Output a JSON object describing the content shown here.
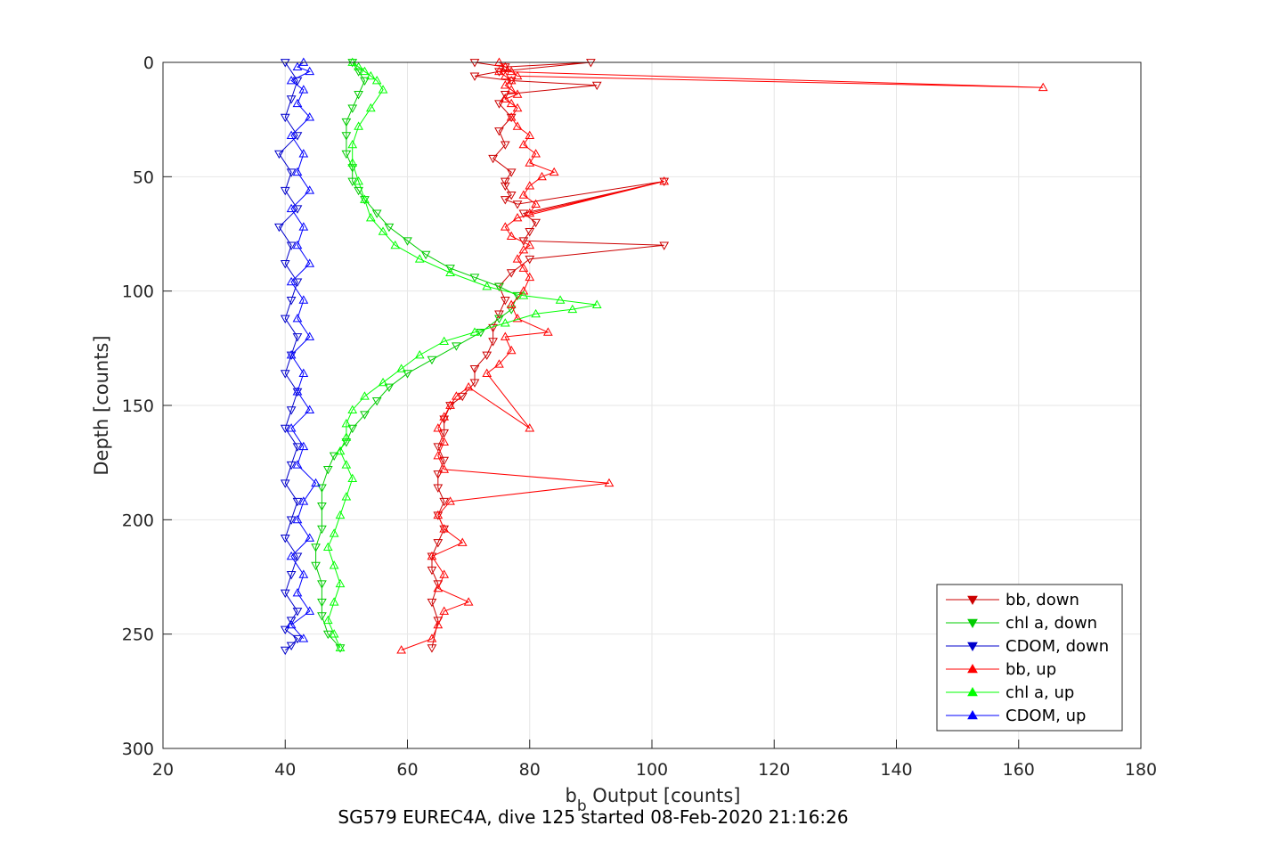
{
  "chart_data": {
    "type": "line",
    "title": "",
    "caption": "SG579 EUREC4A, dive 125 started 08-Feb-2020 21:16:26",
    "xlabel_main": "b",
    "xlabel_sub": "b",
    "xlabel_rest": " Output [counts]",
    "ylabel": "Depth [counts]",
    "xlim": [
      20,
      180
    ],
    "ylim": [
      0,
      300
    ],
    "y_reversed": true,
    "grid": true,
    "legend_position": "bottom-right",
    "xticks": [
      "20",
      "40",
      "60",
      "80",
      "100",
      "120",
      "140",
      "160",
      "180"
    ],
    "yticks": [
      "0",
      "50",
      "100",
      "150",
      "200",
      "250",
      "300"
    ],
    "series": [
      {
        "name": "bb, down",
        "color": "#cc0000",
        "marker": "triangle-down",
        "x": [
          71,
          76,
          90,
          75,
          71,
          77,
          91,
          76,
          75,
          77,
          75,
          76,
          74,
          77,
          76,
          76,
          77,
          76,
          78,
          102,
          79,
          81,
          80,
          79,
          102,
          80,
          77,
          75,
          76,
          75,
          74,
          74,
          73,
          71,
          71,
          69,
          67,
          66,
          66,
          65,
          66,
          65,
          65,
          66,
          65,
          66,
          65,
          64,
          64,
          65,
          64,
          65,
          64
        ],
        "y": [
          0,
          2,
          0,
          4,
          6,
          8,
          10,
          14,
          18,
          24,
          30,
          36,
          42,
          48,
          52,
          54,
          58,
          60,
          62,
          52,
          66,
          70,
          74,
          78,
          80,
          86,
          92,
          98,
          104,
          110,
          116,
          122,
          128,
          134,
          140,
          146,
          150,
          156,
          162,
          168,
          174,
          180,
          186,
          192,
          198,
          204,
          210,
          216,
          222,
          228,
          236,
          244,
          256
        ]
      },
      {
        "name": "chl a, down",
        "color": "#00cc00",
        "marker": "triangle-down",
        "x": [
          51,
          52,
          53,
          52,
          51,
          50,
          50,
          50,
          51,
          51,
          52,
          53,
          55,
          57,
          60,
          63,
          67,
          71,
          75,
          78,
          77,
          75,
          72,
          68,
          64,
          60,
          57,
          55,
          53,
          51,
          50,
          48,
          47,
          46,
          46,
          46,
          45,
          45,
          46,
          46,
          46,
          47,
          49
        ],
        "y": [
          0,
          4,
          8,
          14,
          20,
          26,
          32,
          40,
          46,
          52,
          56,
          60,
          66,
          72,
          78,
          84,
          90,
          94,
          98,
          102,
          108,
          112,
          118,
          124,
          130,
          136,
          142,
          148,
          154,
          160,
          166,
          172,
          178,
          186,
          194,
          204,
          212,
          220,
          228,
          236,
          242,
          250,
          256
        ]
      },
      {
        "name": "CDOM, down",
        "color": "#0000cc",
        "marker": "triangle-down",
        "x": [
          40,
          42,
          41,
          40,
          42,
          39,
          41,
          40,
          42,
          39,
          41,
          40,
          42,
          41,
          40,
          42,
          41,
          40,
          42,
          41,
          40,
          42,
          41,
          40,
          42,
          41,
          40,
          42,
          41,
          40,
          42,
          41,
          40,
          42,
          41,
          40
        ],
        "y": [
          0,
          8,
          16,
          24,
          32,
          40,
          48,
          56,
          64,
          72,
          80,
          88,
          96,
          104,
          112,
          120,
          128,
          136,
          144,
          152,
          160,
          168,
          176,
          184,
          192,
          200,
          208,
          216,
          224,
          232,
          240,
          244,
          248,
          252,
          255,
          257
        ]
      },
      {
        "name": "bb, up",
        "color": "#ff0000",
        "marker": "triangle-up",
        "x": [
          59,
          64,
          65,
          66,
          70,
          65,
          66,
          64,
          69,
          66,
          65,
          67,
          93,
          66,
          65,
          66,
          65,
          66,
          67,
          68,
          70,
          80,
          73,
          75,
          77,
          76,
          83,
          78,
          77,
          79,
          80,
          79,
          78,
          79,
          80,
          77,
          76,
          78,
          102,
          80,
          81,
          79,
          80,
          82,
          84,
          80,
          81,
          79,
          80,
          78,
          77,
          78,
          77,
          76,
          78,
          77,
          76,
          77,
          76,
          75,
          164,
          78,
          77,
          76,
          75
        ],
        "y": [
          257,
          252,
          246,
          240,
          236,
          230,
          224,
          216,
          210,
          204,
          198,
          192,
          184,
          178,
          172,
          166,
          160,
          155,
          150,
          146,
          142,
          160,
          136,
          132,
          126,
          120,
          118,
          112,
          106,
          100,
          94,
          90,
          86,
          82,
          80,
          76,
          72,
          68,
          52,
          66,
          62,
          58,
          54,
          50,
          48,
          44,
          40,
          36,
          32,
          28,
          24,
          20,
          18,
          16,
          14,
          12,
          10,
          8,
          6,
          4,
          11,
          6,
          4,
          2,
          0
        ]
      },
      {
        "name": "chl a, up",
        "color": "#00ff00",
        "marker": "triangle-up",
        "x": [
          49,
          48,
          47,
          48,
          49,
          48,
          47,
          48,
          49,
          50,
          51,
          50,
          49,
          50,
          50,
          51,
          53,
          56,
          59,
          62,
          66,
          71,
          76,
          81,
          87,
          91,
          85,
          79,
          73,
          67,
          62,
          58,
          56,
          54,
          53,
          52,
          51,
          51,
          52,
          54,
          56,
          55,
          54,
          53,
          52,
          51
        ],
        "y": [
          256,
          250,
          244,
          236,
          228,
          220,
          212,
          206,
          198,
          190,
          182,
          176,
          170,
          164,
          158,
          152,
          146,
          140,
          134,
          128,
          122,
          118,
          114,
          110,
          108,
          106,
          104,
          102,
          98,
          92,
          86,
          80,
          74,
          68,
          60,
          52,
          44,
          36,
          28,
          20,
          12,
          8,
          6,
          4,
          2,
          0
        ]
      },
      {
        "name": "CDOM, up",
        "color": "#0000ff",
        "marker": "triangle-up",
        "x": [
          43,
          41,
          44,
          42,
          43,
          41,
          44,
          42,
          43,
          45,
          42,
          43,
          41,
          44,
          42,
          43,
          41,
          44,
          42,
          43,
          41,
          44,
          42,
          43,
          41,
          44,
          42,
          43,
          41,
          44,
          42,
          43,
          41,
          44,
          42,
          43
        ],
        "y": [
          252,
          246,
          240,
          232,
          224,
          216,
          208,
          200,
          192,
          184,
          176,
          168,
          160,
          152,
          144,
          136,
          128,
          120,
          112,
          104,
          96,
          88,
          80,
          72,
          64,
          56,
          48,
          40,
          32,
          24,
          18,
          12,
          8,
          4,
          2,
          0
        ]
      }
    ]
  }
}
